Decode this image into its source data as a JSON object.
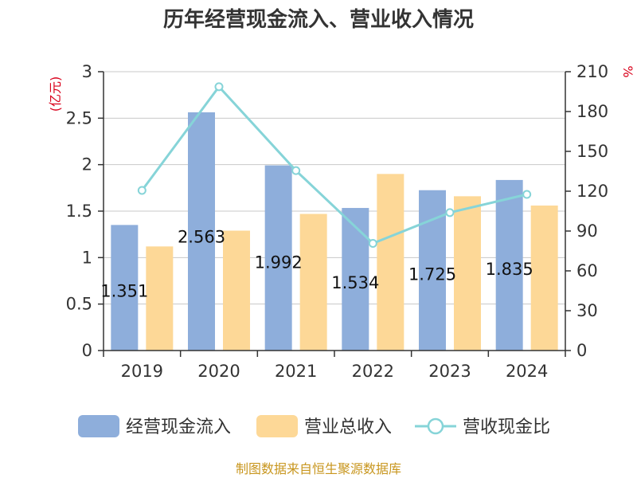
{
  "chart_data": {
    "type": "bar",
    "title": "历年经营现金流入、营业收入情况",
    "categories": [
      "2019",
      "2020",
      "2021",
      "2022",
      "2023",
      "2024"
    ],
    "series": [
      {
        "name": "经营现金流入",
        "type": "bar",
        "axis": "left",
        "color": "#8eaedb",
        "values": [
          1.351,
          2.563,
          1.992,
          1.534,
          1.725,
          1.835
        ]
      },
      {
        "name": "营业总收入",
        "type": "bar",
        "axis": "left",
        "color": "#fdd897",
        "values": [
          1.12,
          1.29,
          1.47,
          1.9,
          1.66,
          1.56
        ]
      },
      {
        "name": "营收现金比",
        "type": "line",
        "axis": "right",
        "color": "#86d4d8",
        "values": [
          120.6,
          198.7,
          135.5,
          80.7,
          103.9,
          117.6
        ]
      }
    ],
    "data_labels": [
      "1.351",
      "2.563",
      "1.992",
      "1.534",
      "1.725",
      "1.835"
    ],
    "y_left": {
      "label": "(亿元)",
      "ylim": [
        0,
        3
      ],
      "ticks": [
        "0",
        "0.5",
        "1",
        "1.5",
        "2",
        "2.5",
        "3"
      ]
    },
    "y_right": {
      "label": "%",
      "ylim": [
        0,
        210
      ],
      "ticks": [
        "0",
        "30",
        "60",
        "90",
        "120",
        "150",
        "180",
        "210"
      ]
    },
    "legend_position": "bottom",
    "grid": true
  },
  "source": "制图数据来自恒生聚源数据库"
}
